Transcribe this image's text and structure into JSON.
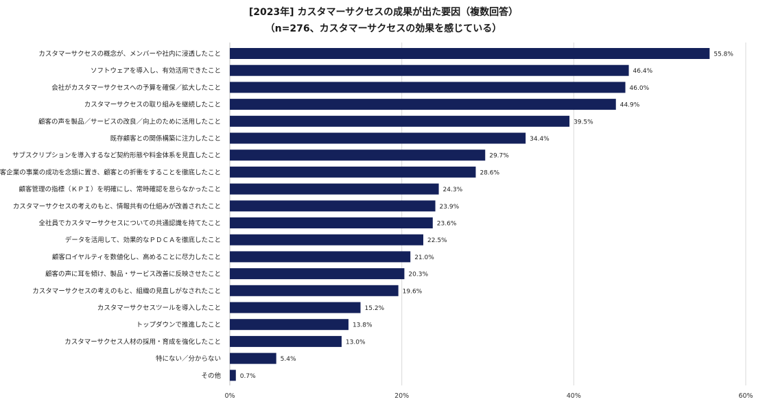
{
  "chart_data": {
    "type": "bar",
    "orientation": "horizontal",
    "title": "[2023年] カスタマーサクセスの成果が出た要因（複数回答）",
    "subtitle": "（n=276、カスタマーサクセスの効果を感じている）",
    "categories": [
      "カスタマーサクセスの概念が、メンバーや社内に浸透したこと",
      "ソフトウェアを導入し、有効活用できたこと",
      "会社がカスタマーサクセスへの予算を確保／拡大したこと",
      "カスタマーサクセスの取り組みを継続したこと",
      "顧客の声を製品／サービスの改良／向上のために活用したこと",
      "既存顧客との関係構築に注力したこと",
      "サブスクリプションを導入するなど契約形態や料金体系を見直したこと",
      "顧客企業の事業の成功を念頭に置き、顧客との折衝をすることを徹底したこと",
      "顧客管理の指標（ＫＰＩ）を明確にし、常時確認を怠らなかったこと",
      "カスタマーサクセスの考えのもと、情報共有の仕組みが改善されたこと",
      "全社員でカスタマーサクセスについての共通認識を持てたこと",
      "データを活用して、効果的なＰＤＣＡを徹底したこと",
      "顧客ロイヤルティを数値化し、高めることに尽力したこと",
      "顧客の声に耳を傾け、製品・サービス改善に反映させたこと",
      "カスタマーサクセスの考えのもと、組織の見直しがなされたこと",
      "カスタマーサクセスツールを導入したこと",
      "トップダウンで推進したこと",
      "カスタマーサクセス人材の採用・育成を強化したこと",
      "特にない／分からない",
      "その他"
    ],
    "values": [
      55.8,
      46.4,
      46.0,
      44.9,
      39.5,
      34.4,
      29.7,
      28.6,
      24.3,
      23.9,
      23.6,
      22.5,
      21.0,
      20.3,
      19.6,
      15.2,
      13.8,
      13.0,
      5.4,
      0.7
    ],
    "value_labels": [
      "55.8%",
      "46.4%",
      "46.0%",
      "44.9%",
      "39.5%",
      "34.4%",
      "29.7%",
      "28.6%",
      "24.3%",
      "23.9%",
      "23.6%",
      "22.5%",
      "21.0%",
      "20.3%",
      "19.6%",
      "15.2%",
      "13.8%",
      "13.0%",
      "5.4%",
      "0.7%"
    ],
    "x_ticks": [
      0,
      20,
      40,
      60
    ],
    "x_tick_labels": [
      "0%",
      "20%",
      "40%",
      "60%"
    ],
    "xlim": [
      0,
      60
    ],
    "grid": "vertical",
    "bar_color": "#14215a",
    "grid_color": "#d9d9d9"
  }
}
